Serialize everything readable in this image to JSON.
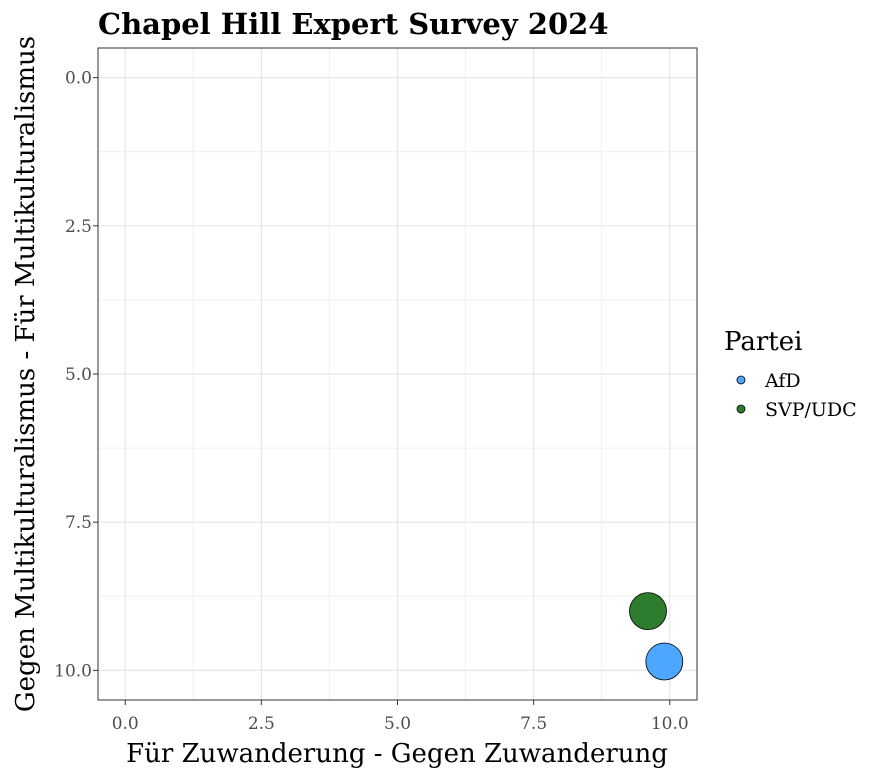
{
  "chart_data": {
    "type": "scatter",
    "title": "Chapel Hill Expert Survey 2024",
    "xlabel": "Für Zuwanderung - Gegen Zuwanderung",
    "ylabel": "Gegen Multikulturalismus - Für Multikulturalismus",
    "xlim": [
      -0.5,
      10.5
    ],
    "ylim": [
      -0.5,
      10.5
    ],
    "y_reversed": true,
    "grid": true,
    "x_ticks": [
      0,
      2.5,
      5,
      7.5,
      10
    ],
    "x_tick_labels": [
      "0.0",
      "2.5",
      "5.0",
      "7.5",
      "10.0"
    ],
    "y_ticks": [
      0,
      2.5,
      5,
      7.5,
      10
    ],
    "y_tick_labels": [
      "0.0",
      "2.5",
      "5.0",
      "7.5",
      "10.0"
    ],
    "legend_title": "Partei",
    "legend_position": "right",
    "series": [
      {
        "name": "AfD",
        "color": "#4DA6FF",
        "points": [
          {
            "x": 9.9,
            "y": 9.85
          }
        ]
      },
      {
        "name": "SVP/UDC",
        "color": "#2E7D2E",
        "points": [
          {
            "x": 9.6,
            "y": 9.0
          }
        ]
      }
    ]
  }
}
